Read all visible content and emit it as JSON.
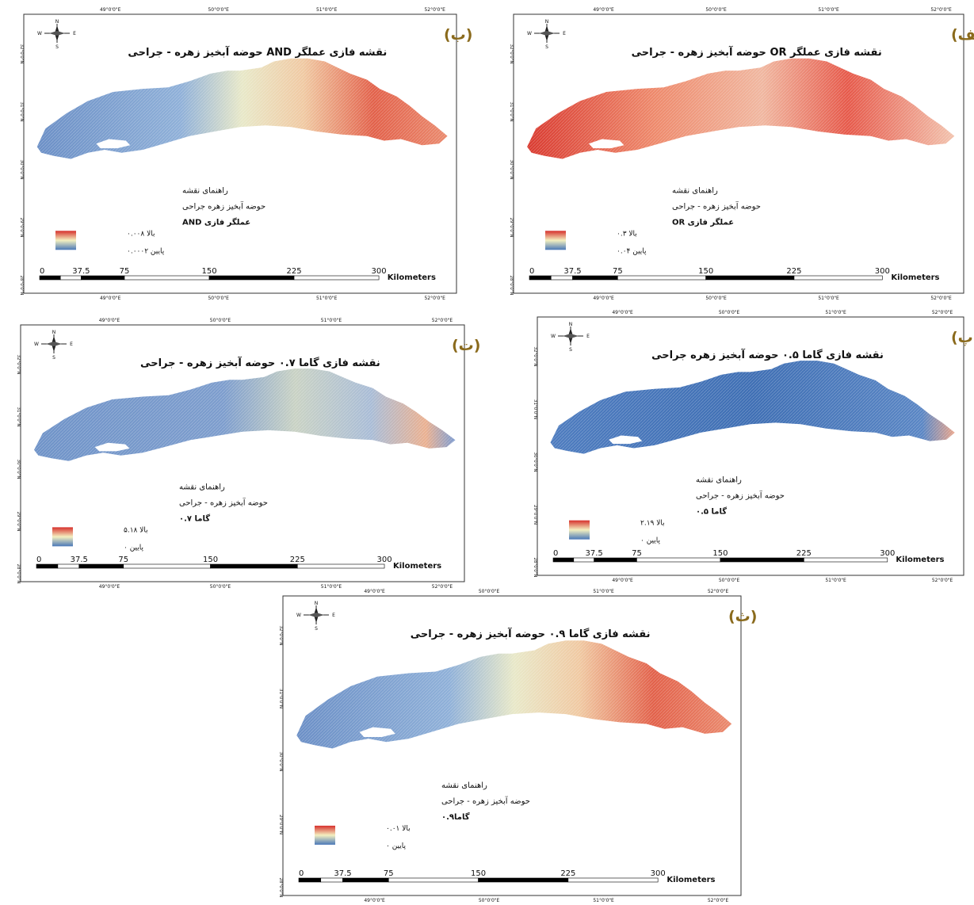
{
  "panels": [
    {
      "id": "alef",
      "label": "(الف)",
      "title": "نقشه فازی عملگر OR حوضه آبخیز زهره - جراحی",
      "legend": {
        "heading": "راهنمای نقشه",
        "basin": "حوضه آبخیز زهره - جراحی",
        "layer": "عملگر فازی OR",
        "high": "بالا ۰.۳",
        "low": "پایین ۰.۰۴"
      },
      "lon_labels": [
        "49°0'0\"E",
        "50°0'0\"E",
        "51°0'0\"E",
        "52°0'0\"E"
      ],
      "lat_labels": [
        "32°0'0\"N",
        "31°0'0\"N",
        "30°0'0\"N",
        "29°0'0\"N",
        "28°0'0\"N"
      ],
      "scale_ticks": [
        "0",
        "37.5",
        "75",
        "150",
        "225",
        "300"
      ],
      "scale_unit": "Kilometers",
      "intensity": "high"
    },
    {
      "id": "be",
      "label": "(ب)",
      "title": "نقشه فازی عملگر AND حوضه آبخیز زهره - جراحی",
      "legend": {
        "heading": "راهنمای نقشه",
        "basin": "حوضه آبخیز زهره جراحی",
        "layer": "عملگر فازی AND",
        "high": "بالا ۰.۰۰۸",
        "low": "پایین ۰.۰۰۰۲"
      },
      "lon_labels": [
        "49°0'0\"E",
        "50°0'0\"E",
        "51°0'0\"E",
        "52°0'0\"E"
      ],
      "lat_labels": [
        "32°0'0\"N",
        "31°0'0\"N",
        "30°0'0\"N",
        "29°0'0\"N",
        "28°0'0\"N"
      ],
      "scale_ticks": [
        "0",
        "37.5",
        "75",
        "150",
        "225",
        "300"
      ],
      "scale_unit": "Kilometers",
      "intensity": "east"
    },
    {
      "id": "pe",
      "label": "(پ)",
      "title": "نقشه فازی گاما ۰.۵ حوضه آبخیز زهره جراحی",
      "legend": {
        "heading": "راهنمای نقشه",
        "basin": "حوضه آبخیز زهره - جراحی",
        "layer": "گاما ۰.۵",
        "high": "بالا ۲.۱۹",
        "low": "پایین ۰"
      },
      "lon_labels": [
        "49°0'0\"E",
        "50°0'0\"E",
        "51°0'0\"E",
        "52°0'0\"E"
      ],
      "lat_labels": [
        "32°0'0\"N",
        "31°0'0\"N",
        "30°0'0\"N",
        "29°0'0\"N",
        "28°0'0\"N"
      ],
      "scale_ticks": [
        "0",
        "37.5",
        "75",
        "150",
        "225",
        "300"
      ],
      "scale_unit": "Kilometers",
      "intensity": "low"
    },
    {
      "id": "te",
      "label": "(ت)",
      "title": "نقشه فازی گاما ۰.۷ حوضه آبخیز زهره - جراحی",
      "legend": {
        "heading": "راهنمای نقشه",
        "basin": "حوضه آبخیز زهره - جراحی",
        "layer": "گاما ۰.۷",
        "high": "بالا ۵.۱۸",
        "low": "پایین ۰"
      },
      "lon_labels": [
        "49°0'0\"E",
        "50°0'0\"E",
        "51°0'0\"E",
        "52°0'0\"E"
      ],
      "lat_labels": [
        "32°0'0\"N",
        "31°0'0\"N",
        "30°0'0\"N",
        "29°0'0\"N",
        "28°0'0\"N"
      ],
      "scale_ticks": [
        "0",
        "37.5",
        "75",
        "150",
        "225",
        "300"
      ],
      "scale_unit": "Kilometers",
      "intensity": "mid"
    },
    {
      "id": "se",
      "label": "(ث)",
      "title": "نقشه فازی گاما ۰.۹ حوضه آبخیز زهره - جراحی",
      "legend": {
        "heading": "راهنمای نقشه",
        "basin": "حوضه آبخیز زهره - جراحی",
        "layer": "گاما۰.۹",
        "high": "بالا ۰.۰۱",
        "low": "پایین ۰"
      },
      "lon_labels": [
        "49°0'0\"E",
        "50°0'0\"E",
        "51°0'0\"E",
        "52°0'0\"E"
      ],
      "lat_labels": [
        "32°0'0\"N",
        "31°0'0\"N",
        "30°0'0\"N",
        "29°0'0\"N",
        "28°0'0\"N"
      ],
      "scale_ticks": [
        "0",
        "37.5",
        "75",
        "150",
        "225",
        "300"
      ],
      "scale_unit": "Kilometers",
      "intensity": "east"
    }
  ],
  "north_arrow": {
    "n": "N",
    "s": "S",
    "e": "E",
    "w": "W"
  },
  "colors": {
    "low": "#4a78b8",
    "mid": "#f4f0c0",
    "high": "#d7302c",
    "label": "#8a6a1c",
    "frame": "#333333"
  }
}
